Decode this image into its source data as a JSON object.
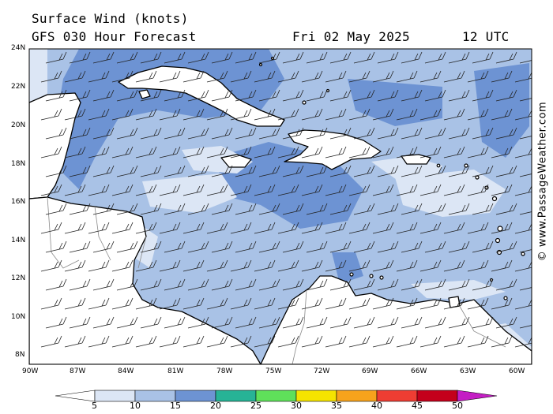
{
  "title": "Surface Wind (knots)",
  "subtitle": "GFS 030 Hour Forecast",
  "valid_date": "Fri 02 May 2025",
  "valid_time": "12 UTC",
  "credit": "© www.PassageWeather.com",
  "lat_labels": [
    "24N",
    "22N",
    "20N",
    "18N",
    "16N",
    "14N",
    "12N",
    "10N",
    "8N"
  ],
  "lon_labels": [
    "90W",
    "87W",
    "84W",
    "81W",
    "78W",
    "75W",
    "72W",
    "69W",
    "66W",
    "63W",
    "60W"
  ],
  "colorbar": {
    "labels": [
      "5",
      "10",
      "15",
      "20",
      "25",
      "30",
      "35",
      "40",
      "45",
      "50"
    ],
    "colors": [
      "#dce6f5",
      "#a9c2e6",
      "#6d93d3",
      "#27b396",
      "#5fe05a",
      "#f5e400",
      "#f7a31c",
      "#ee3d33",
      "#c4001b",
      "#c41ec4"
    ]
  },
  "colors": {
    "land": "#ffffff",
    "sea_light": "#dce6f5",
    "sea_mid": "#a9c2e6",
    "sea_strong": "#6d93d3"
  }
}
